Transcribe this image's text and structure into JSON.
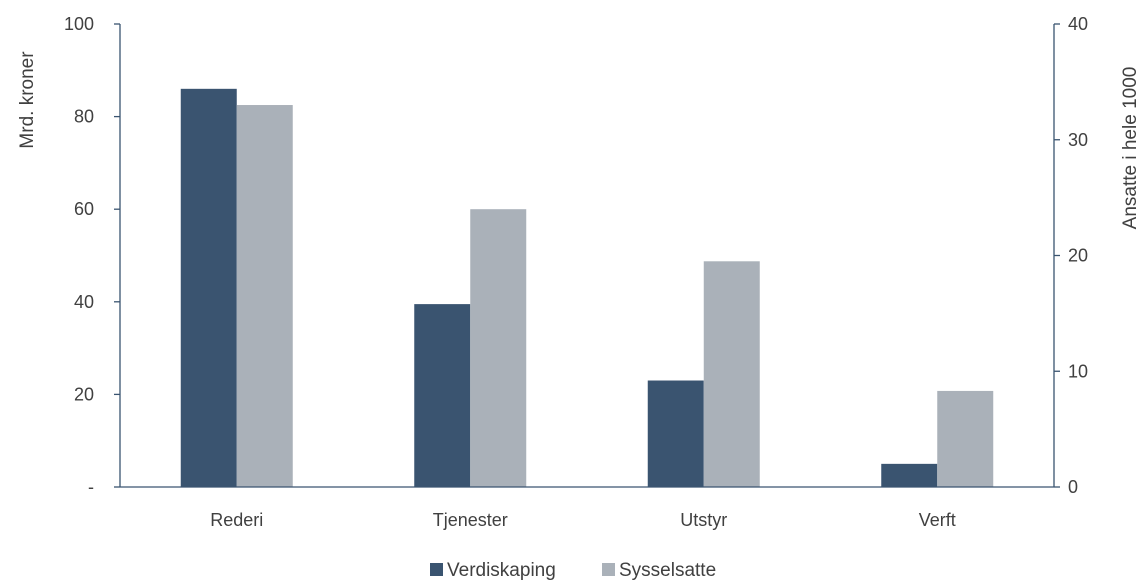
{
  "chart_data": {
    "type": "bar",
    "title": "",
    "categories": [
      "Rederi",
      "Tjenester",
      "Utstyr",
      "Verft"
    ],
    "series": [
      {
        "name": "Verdiskaping",
        "axis": "left",
        "color": "#3a5470",
        "values": [
          86,
          39.5,
          23,
          5
        ]
      },
      {
        "name": "Sysselsatte",
        "axis": "right",
        "color": "#aab1b9",
        "values": [
          33,
          24,
          19.5,
          8.3
        ]
      }
    ],
    "ylabel": "Mrd. kroner",
    "ylim": [
      0,
      100
    ],
    "yticks": [
      "-",
      "20",
      "40",
      "60",
      "80",
      "100"
    ],
    "y2label": "Ansatte i hele 1000",
    "y2lim": [
      0,
      40
    ],
    "y2ticks": [
      "0",
      "10",
      "20",
      "30",
      "40"
    ],
    "grid": false,
    "legend": "bottom",
    "axis_color": "#3a5470"
  }
}
